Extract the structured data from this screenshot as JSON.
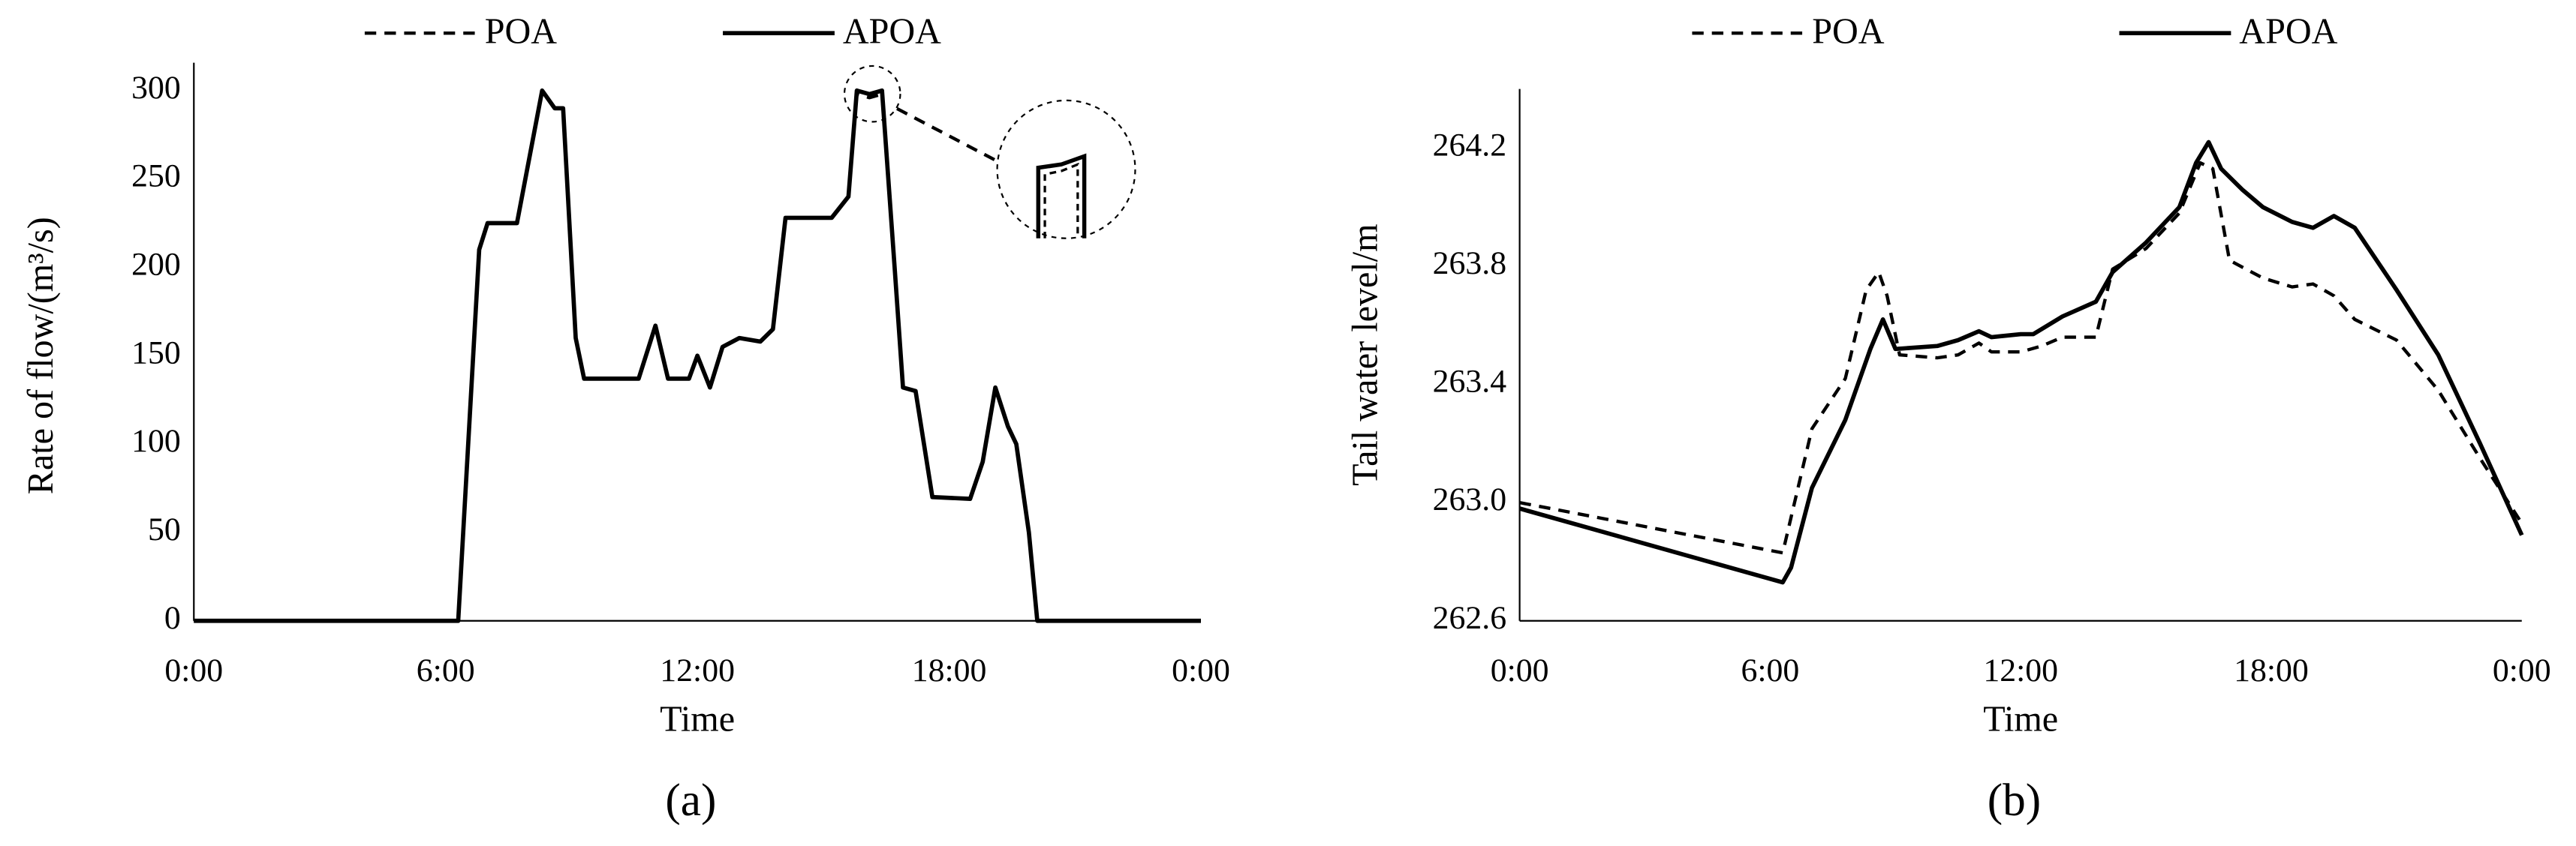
{
  "chart_data": [
    {
      "type": "line",
      "panel_label": "(a)",
      "x_label": "Time",
      "y_label": "Rate of flow/(m³/s)",
      "xlim": [
        0,
        24
      ],
      "xticks": [
        {
          "value": 0,
          "label": "0:00"
        },
        {
          "value": 6,
          "label": "6:00"
        },
        {
          "value": 12,
          "label": "12:00"
        },
        {
          "value": 18,
          "label": "18:00"
        },
        {
          "value": 24,
          "label": "0:00"
        }
      ],
      "ylim": [
        0,
        300
      ],
      "yticks": [
        0,
        50,
        100,
        150,
        200,
        250,
        300
      ],
      "grid": false,
      "series": [
        {
          "name": "POA",
          "color": "#000000",
          "style": "dashed",
          "x": [
            0,
            6.3,
            6.8,
            7.0,
            7.7,
            8.3,
            8.6,
            8.8,
            9.1,
            9.3,
            10.6,
            11.0,
            11.3,
            11.8,
            12.0,
            12.3,
            12.6,
            13.0,
            13.5,
            13.8,
            14.1,
            15.2,
            15.6,
            15.8,
            16.1,
            16.4,
            16.7,
            16.9,
            17.2,
            17.4,
            17.6,
            18.5,
            18.8,
            19.1,
            19.4,
            19.6,
            19.9,
            20.1,
            24
          ],
          "values": [
            0,
            0,
            210,
            225,
            225,
            300,
            290,
            290,
            160,
            137,
            137,
            167,
            137,
            137,
            150,
            132,
            155,
            160,
            158,
            165,
            228,
            228,
            240,
            298,
            296,
            298,
            200,
            132,
            130,
            100,
            70,
            69,
            90,
            132,
            110,
            100,
            50,
            0,
            0
          ]
        },
        {
          "name": "APOA",
          "color": "#000000",
          "style": "solid",
          "x": [
            0,
            6.3,
            6.8,
            7.0,
            7.7,
            8.3,
            8.6,
            8.8,
            9.1,
            9.3,
            10.6,
            11.0,
            11.3,
            11.8,
            12.0,
            12.3,
            12.6,
            13.0,
            13.5,
            13.8,
            14.1,
            15.2,
            15.6,
            15.8,
            16.1,
            16.4,
            16.7,
            16.9,
            17.2,
            17.4,
            17.6,
            18.5,
            18.8,
            19.1,
            19.4,
            19.6,
            19.9,
            20.1,
            24
          ],
          "values": [
            0,
            0,
            210,
            225,
            225,
            300,
            290,
            290,
            160,
            137,
            137,
            167,
            137,
            137,
            150,
            132,
            155,
            160,
            158,
            165,
            228,
            228,
            240,
            300,
            298,
            300,
            200,
            132,
            130,
            100,
            70,
            69,
            90,
            132,
            110,
            100,
            50,
            0,
            0
          ]
        }
      ]
    },
    {
      "type": "line",
      "panel_label": "(b)",
      "x_label": "Time",
      "y_label": "Tail water level/m",
      "xlim": [
        0,
        24
      ],
      "xticks": [
        {
          "value": 0,
          "label": "0:00"
        },
        {
          "value": 6,
          "label": "6:00"
        },
        {
          "value": 12,
          "label": "12:00"
        },
        {
          "value": 18,
          "label": "18:00"
        },
        {
          "value": 24,
          "label": "0:00"
        }
      ],
      "ylim": [
        262.6,
        264.4
      ],
      "yticks": [
        262.6,
        {
          "value": 263,
          "label": "263.0"
        },
        263.4,
        263.8,
        264.2
      ],
      "grid": false,
      "series": [
        {
          "name": "POA",
          "color": "#000000",
          "style": "dashed",
          "x": [
            0,
            6.3,
            6.5,
            7.0,
            7.8,
            8.3,
            8.6,
            8.8,
            9.1,
            10.0,
            10.5,
            11.0,
            11.3,
            12.0,
            12.5,
            13.0,
            13.8,
            14.2,
            15.0,
            15.8,
            16.3,
            16.6,
            17.0,
            17.8,
            18.5,
            19.0,
            19.5,
            20.0,
            21.0,
            22.0,
            23.0,
            24.0
          ],
          "values": [
            263.0,
            262.83,
            262.95,
            263.25,
            263.42,
            263.72,
            263.78,
            263.7,
            263.5,
            263.49,
            263.5,
            263.54,
            263.51,
            263.51,
            263.53,
            263.56,
            263.56,
            263.79,
            263.86,
            263.98,
            264.15,
            264.13,
            263.82,
            263.76,
            263.73,
            263.74,
            263.7,
            263.62,
            263.55,
            263.38,
            263.15,
            262.93
          ]
        },
        {
          "name": "APOA",
          "color": "#000000",
          "style": "solid",
          "x": [
            0,
            6.3,
            6.5,
            7.0,
            7.8,
            8.4,
            8.7,
            9.0,
            10.0,
            10.5,
            11.0,
            11.3,
            12.0,
            12.3,
            13.0,
            13.8,
            14.2,
            15.0,
            15.8,
            16.2,
            16.5,
            16.8,
            17.3,
            17.8,
            18.5,
            19.0,
            19.5,
            20.0,
            21.0,
            22.0,
            23.0,
            24.0
          ],
          "values": [
            262.98,
            262.73,
            262.78,
            263.05,
            263.28,
            263.52,
            263.62,
            263.52,
            263.53,
            263.55,
            263.58,
            263.56,
            263.57,
            263.57,
            263.63,
            263.68,
            263.78,
            263.88,
            264.0,
            264.15,
            264.22,
            264.13,
            264.06,
            264.0,
            263.95,
            263.93,
            263.97,
            263.93,
            263.72,
            263.5,
            263.2,
            262.89
          ]
        }
      ]
    }
  ]
}
